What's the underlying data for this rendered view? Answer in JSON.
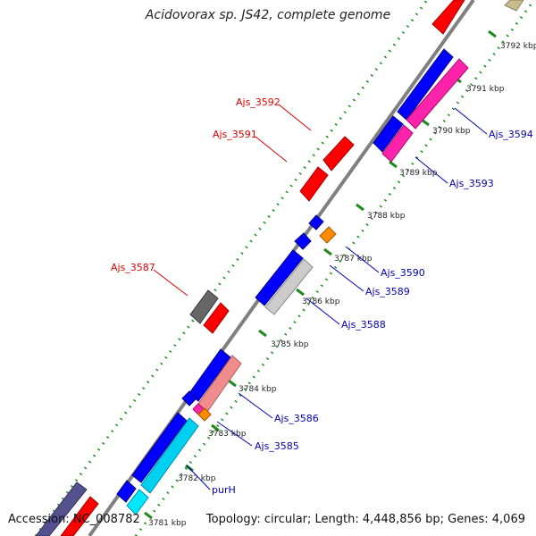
{
  "title": "Acidovorax sp. JS42, complete genome",
  "footer": {
    "accession": "Accession: NC_008782",
    "topology": "Topology: circular; Length: 4,448,856 bp; Genes: 4,069"
  },
  "colors": {
    "backbone": "#808080",
    "dots": "#1e8a1e",
    "forward_label": "#dd0000",
    "reverse_label": "#0000bb"
  },
  "ticks": [
    "3781 kbp",
    "3782 kbp",
    "3783 kbp",
    "3784 kbp",
    "3785 kbp",
    "3786 kbp",
    "3787 kbp",
    "3788 kbp",
    "3789 kbp",
    "3790 kbp",
    "3791 kbp",
    "3792 kbp"
  ],
  "labels": {
    "ajs_3592": "Ajs_3592",
    "ajs_3591": "Ajs_3591",
    "ajs_3587": "Ajs_3587",
    "ajs_3594": "Ajs_3594",
    "ajs_3593": "Ajs_3593",
    "ajs_3590": "Ajs_3590",
    "ajs_3589": "Ajs_3589",
    "ajs_3588": "Ajs_3588",
    "ajs_3586": "Ajs_3586",
    "ajs_3585": "Ajs_3585",
    "purh": "purH"
  }
}
